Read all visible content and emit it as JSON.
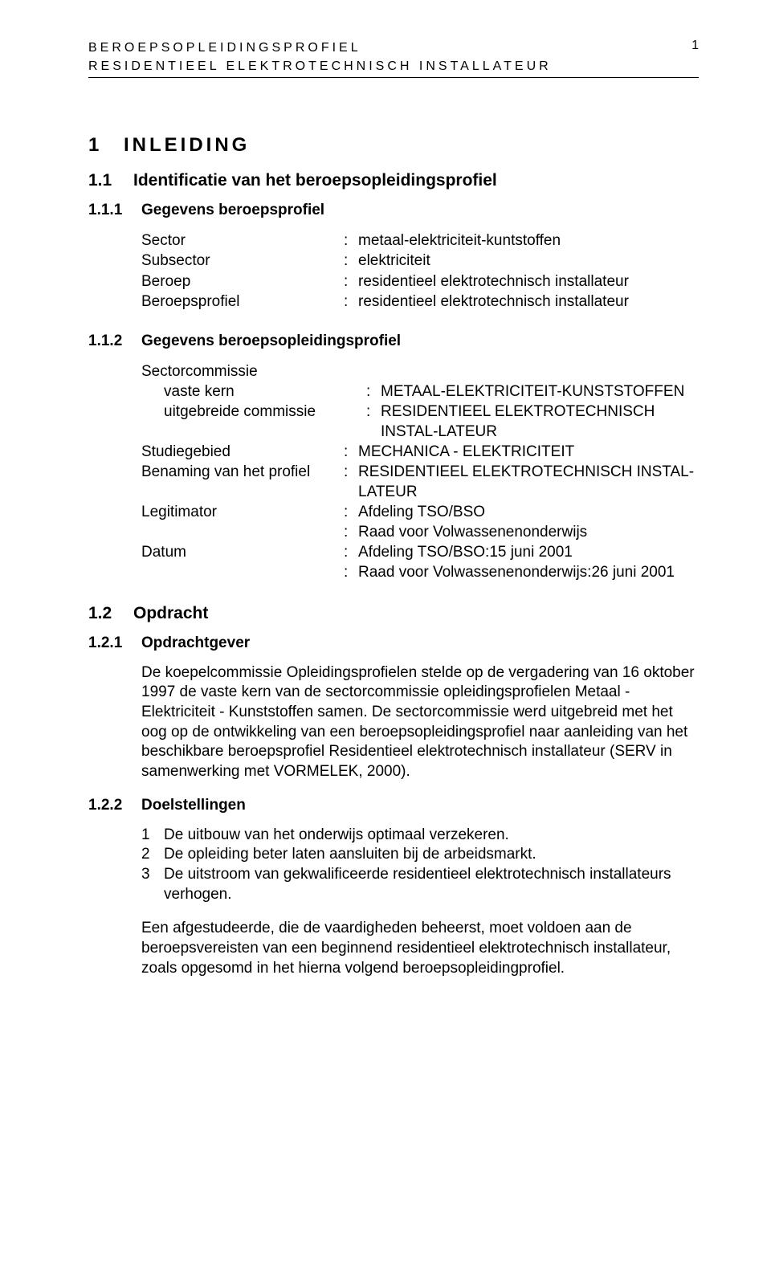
{
  "header": {
    "line1": "BEROEPSOPLEIDINGSPROFIEL",
    "line2": "RESIDENTIEEL ELEKTROTECHNISCH INSTALLATEUR",
    "page_number": "1"
  },
  "section1": {
    "num": "1",
    "title": "INLEIDING"
  },
  "sub11": {
    "num": "1.1",
    "title": "Identificatie van het beroepsopleidingsprofiel"
  },
  "sub111": {
    "num": "1.1.1",
    "title": "Gegevens beroepsprofiel",
    "rows": [
      {
        "key": "Sector",
        "val": "metaal-elektriciteit-kuntstoffen"
      },
      {
        "key": "Subsector",
        "val": "elektriciteit"
      },
      {
        "key": "Beroep",
        "val": "residentieel elektrotechnisch installateur"
      },
      {
        "key": "Beroepsprofiel",
        "val": "residentieel elektrotechnisch installateur"
      }
    ]
  },
  "sub112": {
    "num": "1.1.2",
    "title": "Gegevens beroepsopleidingsprofiel",
    "rows": [
      {
        "key": "Sectorcommissie",
        "no_colon": true,
        "val": ""
      },
      {
        "key": "vaste kern",
        "indent": true,
        "val": "METAAL-ELEKTRICITEIT-KUNSTSTOFFEN"
      },
      {
        "key": "uitgebreide commissie",
        "indent": true,
        "val": "RESIDENTIEEL ELEKTROTECHNISCH INSTAL-LATEUR"
      },
      {
        "key": "Studiegebied",
        "val": "MECHANICA - ELEKTRICITEIT"
      },
      {
        "key": "Benaming van het profiel",
        "val": "RESIDENTIEEL ELEKTROTECHNISCH INSTAL-LATEUR"
      },
      {
        "key": "Legitimator",
        "val": "Afdeling TSO/BSO"
      },
      {
        "key": "",
        "val": "Raad voor Volwassenenonderwijs"
      },
      {
        "key": "Datum",
        "val": "Afdeling TSO/BSO:15 juni 2001"
      },
      {
        "key": "",
        "val": "Raad voor Volwassenenonderwijs:26 juni 2001"
      }
    ]
  },
  "sub12": {
    "num": "1.2",
    "title": "Opdracht"
  },
  "sub121": {
    "num": "1.2.1",
    "title": "Opdrachtgever",
    "para": "De koepelcommissie Opleidingsprofielen stelde op de vergadering van 16 oktober 1997 de vaste kern van de sectorcommissie opleidingsprofielen Metaal - Elektriciteit - Kunststoffen samen. De sectorcommissie werd uitgebreid met het oog op de ontwikkeling van een beroepsopleidingsprofiel naar aanleiding van het beschikbare beroepsprofiel Residentieel elektrotechnisch installateur (SERV in samenwerking met VORMELEK, 2000)."
  },
  "sub122": {
    "num": "1.2.2",
    "title": "Doelstellingen",
    "items": [
      "De uitbouw van het onderwijs optimaal verzekeren.",
      "De opleiding beter laten aansluiten bij de arbeidsmarkt.",
      "De uitstroom van gekwalificeerde residentieel elektrotechnisch installateurs verhogen."
    ],
    "para": "Een afgestudeerde, die de vaardigheden beheerst, moet voldoen aan de beroepsvereisten van een beginnend residentieel elektrotechnisch installateur, zoals opgesomd in het hierna volgend beroepsopleidingprofiel."
  }
}
